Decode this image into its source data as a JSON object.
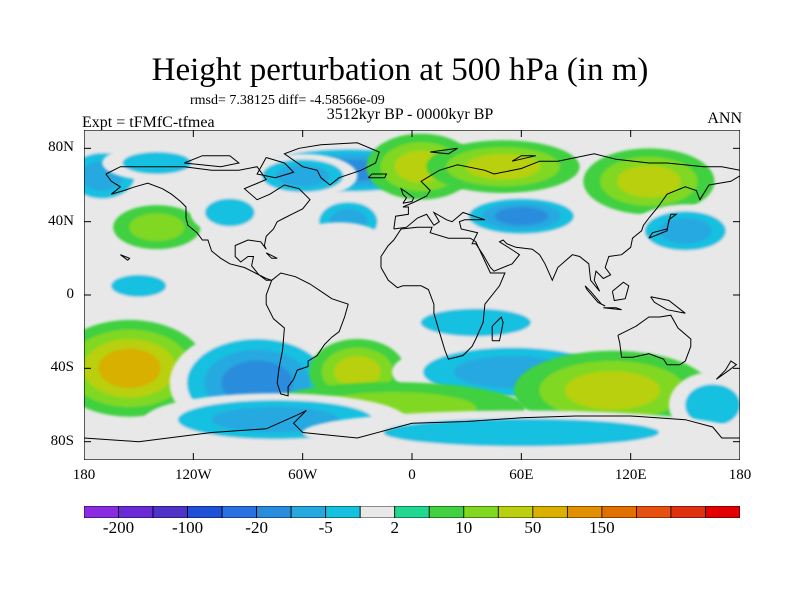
{
  "title": "Height perturbation at 500 hPa (in m)",
  "stats_text": "rmsd= 7.38125 diff= -4.58566e-09",
  "period": "3512kyr BP - 0000kyr BP",
  "experiment": "Expt = tFMfC-tfmea",
  "season": "ANN",
  "chart_data": {
    "type": "heatmap",
    "projection": "cylindrical-equidistant",
    "title": "Height perturbation at 500 hPa (in m)",
    "lat_range": [
      -90,
      90
    ],
    "lon_range": [
      -180,
      180
    ],
    "lat_ticks": [
      {
        "label": "80N",
        "value": 80
      },
      {
        "label": "40N",
        "value": 40
      },
      {
        "label": "0",
        "value": 0
      },
      {
        "label": "40S",
        "value": -40
      },
      {
        "label": "80S",
        "value": -80
      }
    ],
    "lon_ticks": [
      {
        "label": "180",
        "value": -180
      },
      {
        "label": "120W",
        "value": -120
      },
      {
        "label": "60W",
        "value": -60
      },
      {
        "label": "0",
        "value": 0
      },
      {
        "label": "60E",
        "value": 60
      },
      {
        "label": "120E",
        "value": 120
      },
      {
        "label": "180",
        "value": 180
      }
    ],
    "colorbar": {
      "colors": [
        "#8a2be2",
        "#6a2ad8",
        "#4f33c9",
        "#2050d8",
        "#2a70e0",
        "#2a8cdc",
        "#25a8e0",
        "#18c0e0",
        "#e8e8e8",
        "#20d890",
        "#40d040",
        "#80d820",
        "#b8d010",
        "#d8b000",
        "#e09000",
        "#e07000",
        "#e85010",
        "#e03010",
        "#e00000"
      ],
      "labels": [
        {
          "text": "-200",
          "boundary": 1
        },
        {
          "text": "-100",
          "boundary": 3
        },
        {
          "text": "-20",
          "boundary": 5
        },
        {
          "text": "-5",
          "boundary": 7
        },
        {
          "text": "2",
          "boundary": 9
        },
        {
          "text": "10",
          "boundary": 11
        },
        {
          "text": "50",
          "boundary": 13
        },
        {
          "text": "150",
          "boundary": 15
        }
      ]
    },
    "field_anomalies": [
      {
        "lon": -35,
        "lat": 68,
        "value": -35,
        "rx": 50,
        "ry": 12
      },
      {
        "lon": -60,
        "lat": 65,
        "value": -20,
        "rx": 25,
        "ry": 10
      },
      {
        "lon": -170,
        "lat": 65,
        "value": -12,
        "rx": 20,
        "ry": 14
      },
      {
        "lon": -140,
        "lat": 72,
        "value": -10,
        "rx": 25,
        "ry": 8
      },
      {
        "lon": -140,
        "lat": 37,
        "value": 10,
        "rx": 20,
        "ry": 10
      },
      {
        "lon": -100,
        "lat": 45,
        "value": -8,
        "rx": 18,
        "ry": 10
      },
      {
        "lon": -35,
        "lat": 40,
        "value": -12,
        "rx": 18,
        "ry": 12
      },
      {
        "lon": -40,
        "lat": 30,
        "value": -5,
        "rx": 20,
        "ry": 8
      },
      {
        "lon": 5,
        "lat": 70,
        "value": 15,
        "rx": 25,
        "ry": 15
      },
      {
        "lon": 50,
        "lat": 70,
        "value": 12,
        "rx": 35,
        "ry": 12
      },
      {
        "lon": 130,
        "lat": 62,
        "value": 22,
        "rx": 30,
        "ry": 15
      },
      {
        "lon": 60,
        "lat": 43,
        "value": -25,
        "rx": 30,
        "ry": 10
      },
      {
        "lon": 150,
        "lat": 35,
        "value": -22,
        "rx": 25,
        "ry": 12
      },
      {
        "lon": -150,
        "lat": 5,
        "value": -6,
        "rx": 20,
        "ry": 8
      },
      {
        "lon": 35,
        "lat": -15,
        "value": -8,
        "rx": 40,
        "ry": 10
      },
      {
        "lon": -155,
        "lat": -40,
        "value": 35,
        "rx": 35,
        "ry": 22
      },
      {
        "lon": -85,
        "lat": -48,
        "value": -40,
        "rx": 40,
        "ry": 25
      },
      {
        "lon": -30,
        "lat": -42,
        "value": 20,
        "rx": 22,
        "ry": 15
      },
      {
        "lon": 55,
        "lat": -42,
        "value": -22,
        "rx": 55,
        "ry": 15
      },
      {
        "lon": 110,
        "lat": -52,
        "value": 20,
        "rx": 45,
        "ry": 18
      },
      {
        "lon": -10,
        "lat": -62,
        "value": 10,
        "rx": 60,
        "ry": 12
      },
      {
        "lon": 165,
        "lat": -60,
        "value": -8,
        "rx": 20,
        "ry": 15
      },
      {
        "lon": -75,
        "lat": -68,
        "value": -15,
        "rx": 60,
        "ry": 12
      },
      {
        "lon": 60,
        "lat": -75,
        "value": -6,
        "rx": 100,
        "ry": 10
      }
    ]
  }
}
